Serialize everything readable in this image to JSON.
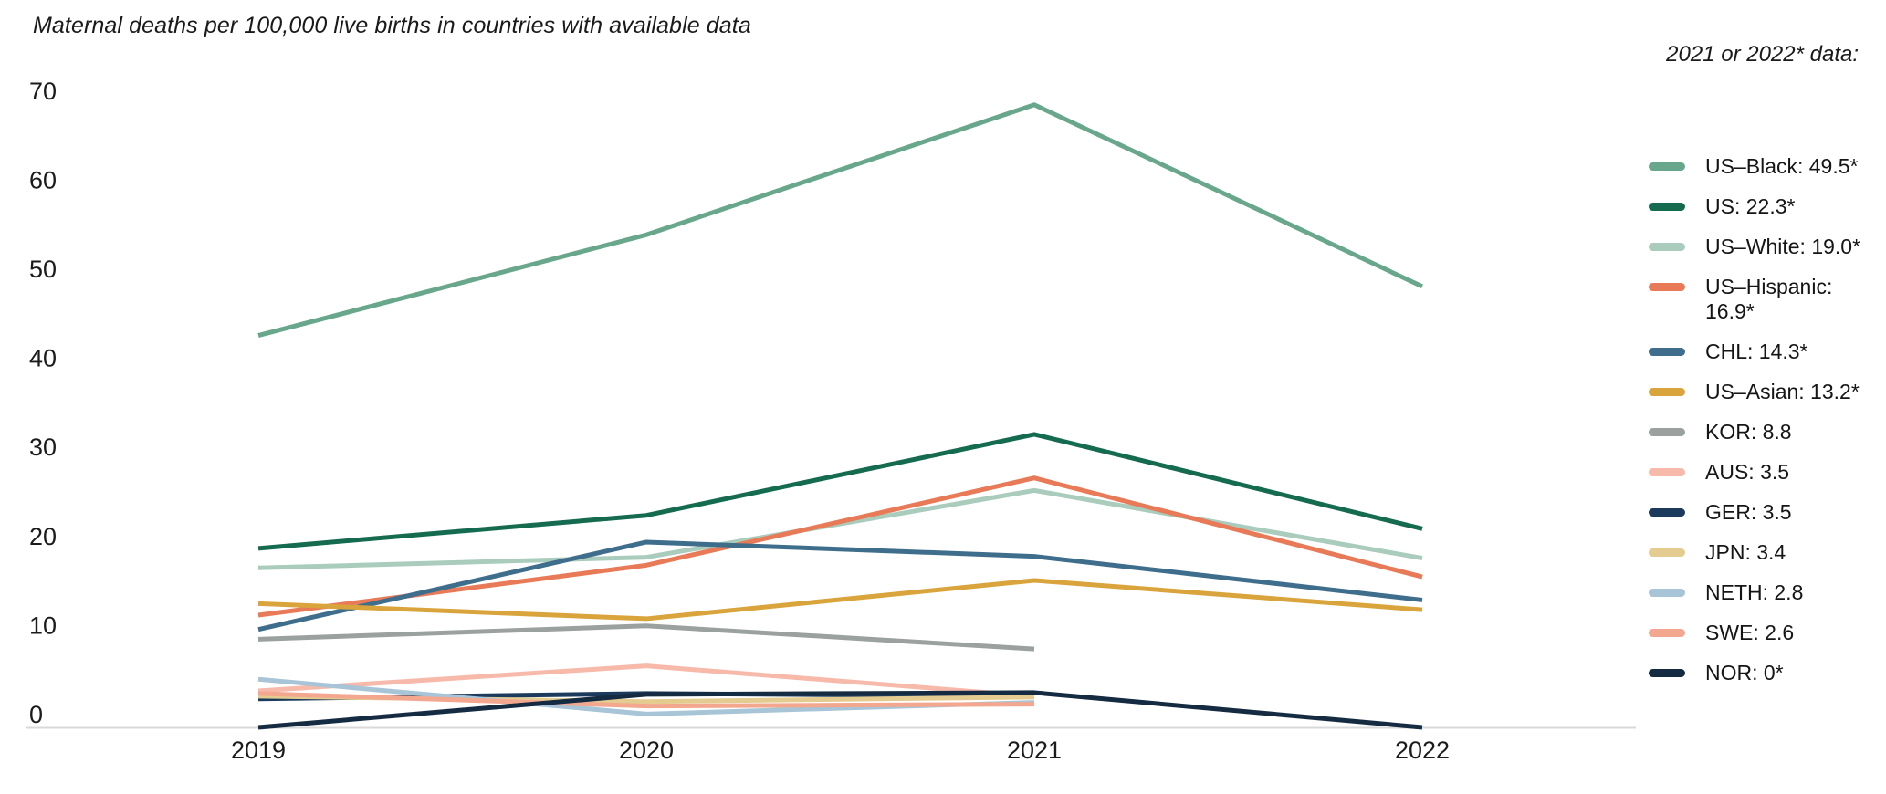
{
  "title": "Maternal deaths per 100,000 live births in countries with available data",
  "legend": {
    "header": "2021 or 2022* data:"
  },
  "chart_data": {
    "type": "line",
    "x": [
      2019,
      2020,
      2021,
      2022
    ],
    "x_tick_labels": [
      "2019",
      "2020",
      "2021",
      "2022"
    ],
    "y_ticks": [
      0,
      10,
      20,
      30,
      40,
      50,
      60,
      70
    ],
    "ylim": [
      0,
      70
    ],
    "grid": false,
    "legend_position": "right",
    "axis_line_color": "#d9d9d9",
    "series": [
      {
        "name": "US–Black",
        "label": "US–Black: 49.5*",
        "color": "#69a78c",
        "values": [
          44.0,
          55.3,
          69.9,
          49.5
        ]
      },
      {
        "name": "US",
        "label": "US: 22.3*",
        "color": "#156b4f",
        "values": [
          20.1,
          23.8,
          32.9,
          22.3
        ]
      },
      {
        "name": "US–White",
        "label": "US–White: 19.0*",
        "color": "#a9ccbc",
        "values": [
          17.9,
          19.1,
          26.6,
          19.0
        ]
      },
      {
        "name": "US–Hispanic",
        "label": "US–Hispanic: 16.9*",
        "color": "#e87a58",
        "values": [
          12.6,
          18.2,
          28.0,
          16.9
        ]
      },
      {
        "name": "CHL",
        "label": "CHL: 14.3*",
        "color": "#3e6e8c",
        "values": [
          11.0,
          20.8,
          19.2,
          14.3
        ]
      },
      {
        "name": "US–Asian",
        "label": "US–Asian: 13.2*",
        "color": "#d9a43b",
        "values": [
          13.9,
          12.2,
          16.5,
          13.2
        ]
      },
      {
        "name": "KOR",
        "label": "KOR: 8.8",
        "color": "#9ba19f",
        "values": [
          9.9,
          11.4,
          8.8,
          null
        ]
      },
      {
        "name": "AUS",
        "label": "AUS: 3.5",
        "color": "#f6b9aa",
        "values": [
          4.1,
          6.9,
          3.5,
          null
        ]
      },
      {
        "name": "GER",
        "label": "GER: 3.5",
        "color": "#1c3b5c",
        "values": [
          3.2,
          3.8,
          3.5,
          null
        ]
      },
      {
        "name": "JPN",
        "label": "JPN: 3.4",
        "color": "#e4cc90",
        "values": [
          3.5,
          2.9,
          3.4,
          null
        ]
      },
      {
        "name": "NETH",
        "label": "NETH: 2.8",
        "color": "#a8c4d7",
        "values": [
          5.4,
          1.5,
          2.8,
          null
        ]
      },
      {
        "name": "SWE",
        "label": "SWE: 2.6",
        "color": "#f3a78f",
        "values": [
          3.8,
          2.4,
          2.6,
          null
        ]
      },
      {
        "name": "NOR",
        "label": "NOR: 0*",
        "color": "#142b41",
        "values": [
          0,
          3.7,
          3.9,
          0
        ]
      }
    ]
  }
}
